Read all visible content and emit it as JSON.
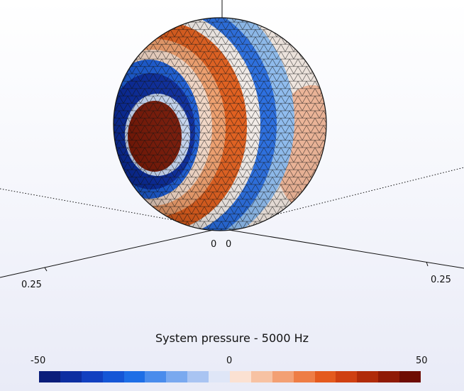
{
  "plot": {
    "title": "System pressure - 5000 Hz",
    "origin_labels": [
      "0",
      "0"
    ],
    "axis_left_label": "0.25",
    "axis_right_label": "0.25"
  },
  "colorbar": {
    "min_label": "-50",
    "mid_label": "0",
    "max_label": "50",
    "colors": [
      "#0a1d7a",
      "#0d2ea1",
      "#1240c0",
      "#1556d6",
      "#1e6ee6",
      "#4a8cec",
      "#7aa9ef",
      "#a9c4f2",
      "#dfe6f7",
      "#fbe1d2",
      "#f7c2a3",
      "#f3a074",
      "#ee7d45",
      "#e45a1e",
      "#cf4012",
      "#b02b0a",
      "#8f1a06",
      "#6e0c03"
    ]
  },
  "sphere": {
    "cap_color": "#7a1a08",
    "ring_dark_blue": "#0c2ea0",
    "ring_mid_blue": "#1d5fd8",
    "band_orange": "#e05f1e",
    "band_light_blue": "#8fbdf0",
    "far_side_light": "#f3e9e2"
  }
}
